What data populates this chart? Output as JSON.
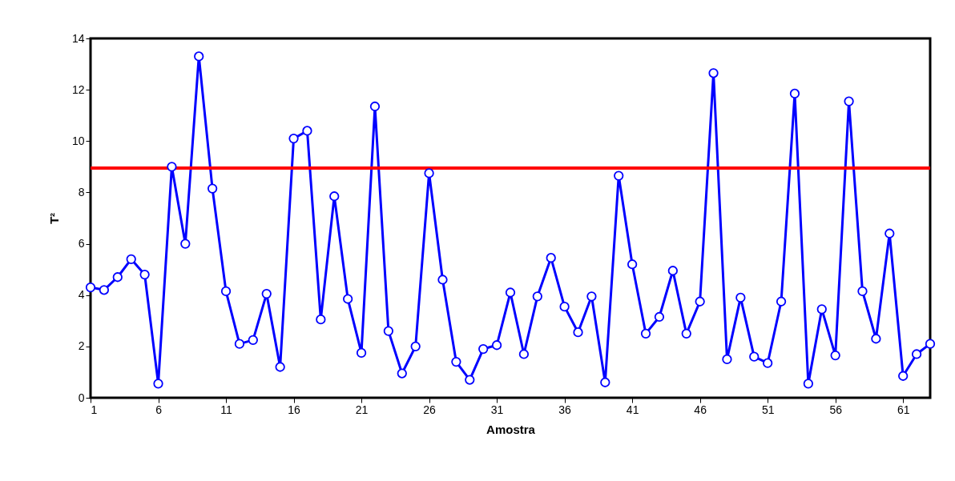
{
  "chart_data": {
    "type": "line",
    "xlabel": "Amostra",
    "ylabel": "T²",
    "x": [
      1,
      2,
      3,
      4,
      5,
      6,
      7,
      8,
      9,
      10,
      11,
      12,
      13,
      14,
      15,
      16,
      17,
      18,
      19,
      20,
      21,
      22,
      23,
      24,
      25,
      26,
      27,
      28,
      29,
      30,
      31,
      32,
      33,
      34,
      35,
      36,
      37,
      38,
      39,
      40,
      41,
      42,
      43,
      44,
      45,
      46,
      47,
      48,
      49,
      50,
      51,
      52,
      53,
      54,
      55,
      56,
      57,
      58,
      59,
      60,
      61,
      62,
      63
    ],
    "series": [
      {
        "color": "#0000ff",
        "values": [
          4.3,
          4.2,
          4.7,
          5.4,
          4.8,
          0.55,
          9.0,
          6.0,
          13.3,
          8.15,
          4.15,
          2.1,
          2.25,
          4.05,
          1.2,
          10.1,
          10.4,
          3.05,
          7.85,
          3.85,
          1.75,
          11.35,
          2.6,
          0.95,
          2.0,
          8.75,
          4.6,
          1.4,
          0.7,
          1.9,
          2.05,
          4.1,
          1.7,
          3.95,
          5.45,
          3.55,
          2.55,
          3.95,
          0.6,
          8.65,
          5.2,
          2.5,
          3.15,
          4.95,
          2.5,
          3.75,
          12.65,
          1.5,
          3.9,
          1.6,
          1.35,
          3.75,
          11.85,
          0.55,
          3.45,
          1.65,
          11.55,
          4.15,
          2.3,
          6.4,
          0.85,
          1.7,
          2.1
        ]
      }
    ],
    "xlim": [
      1,
      63
    ],
    "xticks": [
      1,
      6,
      11,
      16,
      21,
      26,
      31,
      36,
      41,
      46,
      51,
      56,
      61
    ],
    "ylim": [
      0,
      14
    ],
    "yticks": [
      0,
      2,
      4,
      6,
      8,
      10,
      12,
      14
    ],
    "ref_lines": [
      {
        "axis": "y",
        "value": 8.95,
        "color": "#ff0000"
      }
    ],
    "marker": "circle",
    "line_style": "solid",
    "grid": false
  }
}
